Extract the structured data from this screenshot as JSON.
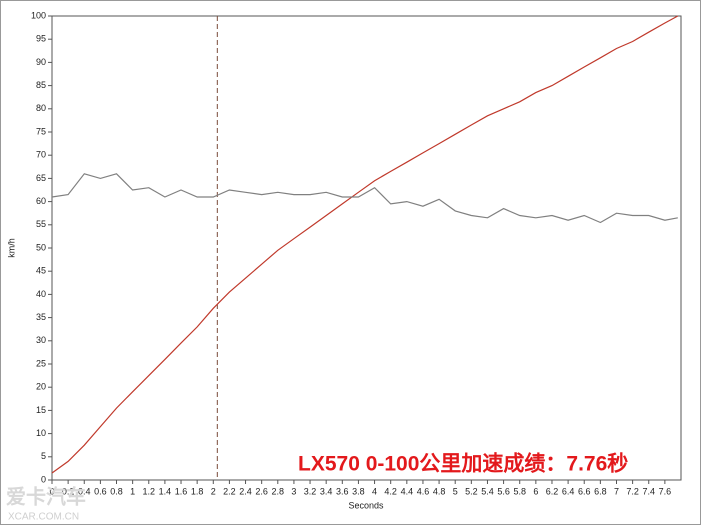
{
  "chart_data": {
    "type": "line",
    "y_label": "km/h",
    "x_label": "Seconds",
    "annotation": "LX570 0-100公里加速成绩：7.76秒",
    "watermark": [
      "爱卡汽车",
      "XCAR.COM.CN"
    ],
    "xlim": [
      0,
      7.8
    ],
    "ylim": [
      0,
      100
    ],
    "xticks": [
      0,
      0.2,
      0.4,
      0.6,
      0.8,
      1,
      1.2,
      1.4,
      1.6,
      1.8,
      2,
      2.2,
      2.4,
      2.6,
      2.8,
      3,
      3.2,
      3.4,
      3.6,
      3.8,
      4,
      4.2,
      4.4,
      4.6,
      4.8,
      5,
      5.2,
      5.4,
      5.6,
      5.8,
      6,
      6.2,
      6.4,
      6.6,
      6.8,
      7,
      7.2,
      7.4,
      7.6
    ],
    "yticks": [
      0,
      5,
      10,
      15,
      20,
      25,
      30,
      35,
      40,
      45,
      50,
      55,
      60,
      65,
      70,
      75,
      80,
      85,
      90,
      95,
      100
    ],
    "cursor": 2.05,
    "x": [
      0,
      0.2,
      0.4,
      0.6,
      0.8,
      1,
      1.2,
      1.4,
      1.6,
      1.8,
      2,
      2.2,
      2.4,
      2.6,
      2.8,
      3,
      3.2,
      3.4,
      3.6,
      3.8,
      4,
      4.2,
      4.4,
      4.6,
      4.8,
      5,
      5.2,
      5.4,
      5.6,
      5.8,
      6,
      6.2,
      6.4,
      6.6,
      6.8,
      7,
      7.2,
      7.4,
      7.6,
      7.76
    ],
    "series": [
      {
        "color": "#c0392b",
        "values": [
          1.5,
          4,
          7.5,
          11.5,
          15.5,
          19,
          22.5,
          26,
          29.5,
          33,
          37,
          40.5,
          43.5,
          46.5,
          49.5,
          52,
          54.5,
          57,
          59.5,
          62,
          64.5,
          66.5,
          68.5,
          70.5,
          72.5,
          74.5,
          76.5,
          78.5,
          80,
          81.5,
          83.5,
          85,
          87,
          89,
          91,
          93,
          94.5,
          96.5,
          98.5,
          100
        ]
      },
      {
        "color": "#808080",
        "values": [
          61,
          61.5,
          66,
          65,
          66,
          62.5,
          63,
          61,
          62.5,
          61,
          61,
          62.5,
          62,
          61.5,
          62,
          61.5,
          61.5,
          62,
          61,
          61,
          63,
          59.5,
          60,
          59,
          60.5,
          58,
          57,
          56.5,
          58.5,
          57,
          56.5,
          57,
          56,
          57,
          55.5,
          57.5,
          57,
          57,
          56,
          56.5
        ]
      }
    ]
  }
}
